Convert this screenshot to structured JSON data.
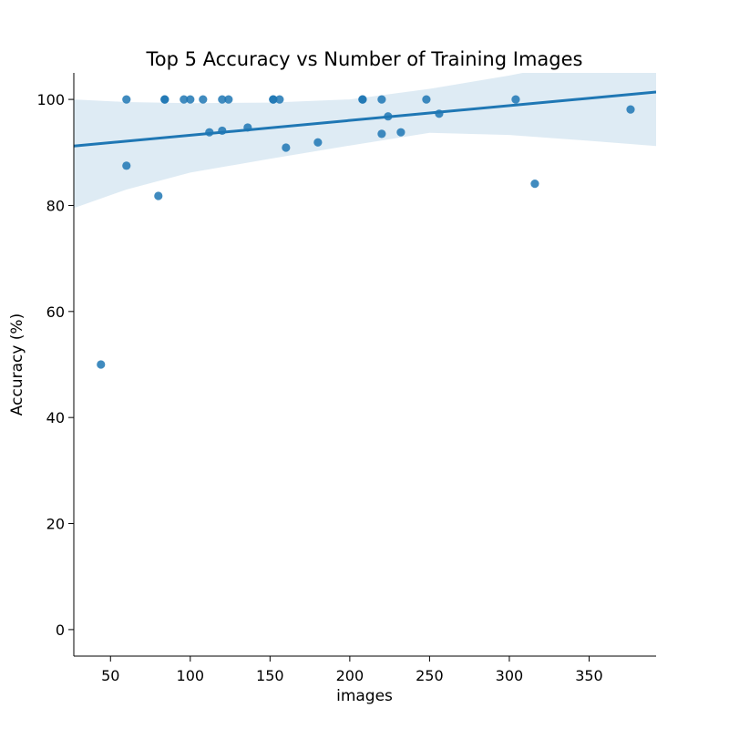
{
  "chart_data": {
    "type": "scatter",
    "title": "Top 5 Accuracy vs Number of Training Images",
    "xlabel": "images",
    "ylabel": "Accuracy (%)",
    "xlim": [
      27,
      392
    ],
    "ylim": [
      -5,
      105
    ],
    "x_ticks": [
      50,
      100,
      150,
      200,
      250,
      300,
      350
    ],
    "y_ticks": [
      0,
      20,
      40,
      60,
      80,
      100
    ],
    "grid": false,
    "points": [
      {
        "x": 44,
        "y": 50
      },
      {
        "x": 60,
        "y": 100
      },
      {
        "x": 60,
        "y": 87.5
      },
      {
        "x": 80,
        "y": 81.8
      },
      {
        "x": 84,
        "y": 100
      },
      {
        "x": 84,
        "y": 100
      },
      {
        "x": 96,
        "y": 100
      },
      {
        "x": 100,
        "y": 100
      },
      {
        "x": 108,
        "y": 100
      },
      {
        "x": 112,
        "y": 93.8
      },
      {
        "x": 120,
        "y": 100
      },
      {
        "x": 120,
        "y": 94.1
      },
      {
        "x": 124,
        "y": 100
      },
      {
        "x": 136,
        "y": 94.7
      },
      {
        "x": 152,
        "y": 100
      },
      {
        "x": 152,
        "y": 100
      },
      {
        "x": 156,
        "y": 100
      },
      {
        "x": 160,
        "y": 90.9
      },
      {
        "x": 180,
        "y": 91.9
      },
      {
        "x": 208,
        "y": 100
      },
      {
        "x": 208,
        "y": 100
      },
      {
        "x": 220,
        "y": 100
      },
      {
        "x": 220,
        "y": 93.5
      },
      {
        "x": 224,
        "y": 96.8
      },
      {
        "x": 232,
        "y": 93.8
      },
      {
        "x": 248,
        "y": 100
      },
      {
        "x": 256,
        "y": 97.3
      },
      {
        "x": 304,
        "y": 100
      },
      {
        "x": 316,
        "y": 84.1
      },
      {
        "x": 376,
        "y": 98.1
      }
    ],
    "regression_line": {
      "x": [
        27,
        392
      ],
      "y": [
        91.2,
        101.4
      ]
    },
    "confidence_band": {
      "x": [
        27,
        60,
        100,
        150,
        200,
        250,
        300,
        350,
        392
      ],
      "upper": [
        100,
        99.5,
        99.3,
        99.4,
        100,
        102,
        104.5,
        107.5,
        110
      ],
      "lower": [
        79.5,
        83,
        86.2,
        88.8,
        91.3,
        93.7,
        93.3,
        92.2,
        91.2
      ]
    },
    "colors": {
      "point": "#1f77b4",
      "line": "#1f77b4",
      "band": "#1f77b4"
    }
  }
}
